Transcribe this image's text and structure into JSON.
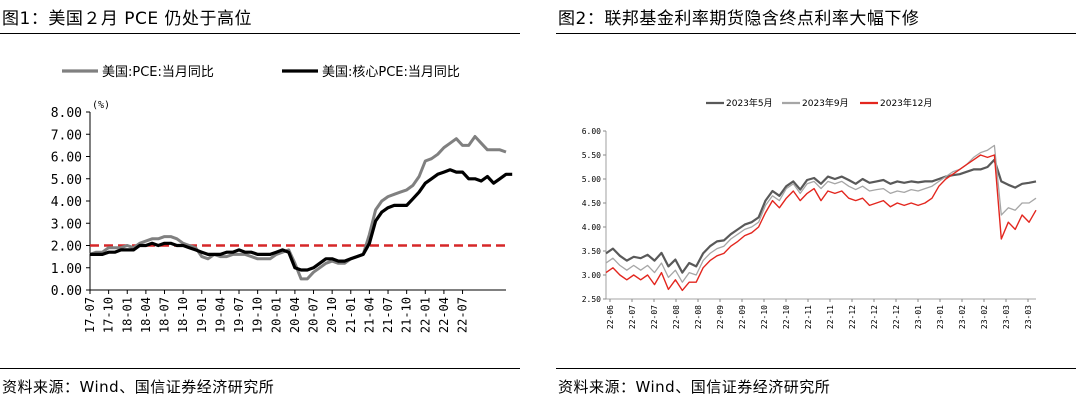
{
  "panels": [
    {
      "title": "图1：美国２月 PCE 仍处于高位",
      "source": "资料来源：Wind、国信证券经济研究所"
    },
    {
      "title": "图2：联邦基金利率期货隐含终点利率大幅下修",
      "source": "资料来源：Wind、国信证券经济研究所"
    }
  ],
  "chart_data": [
    {
      "type": "line",
      "title": "",
      "ylabel": "(%)",
      "ylim": [
        0,
        8
      ],
      "yticks": [
        "0.00",
        "1.00",
        "2.00",
        "3.00",
        "4.00",
        "5.00",
        "6.00",
        "7.00",
        "8.00"
      ],
      "xticks": [
        "17-07",
        "17-10",
        "18-01",
        "18-04",
        "18-07",
        "18-10",
        "19-01",
        "19-04",
        "19-07",
        "19-10",
        "20-01",
        "20-04",
        "20-07",
        "20-10",
        "21-01",
        "21-04",
        "21-07",
        "21-10",
        "22-01",
        "22-04",
        "22-07"
      ],
      "reference_line": {
        "value": 2.0,
        "color": "#d62728",
        "style": "dashed"
      },
      "legend_position": "top",
      "series": [
        {
          "name": "美国:PCE:当月同比",
          "color": "#808080",
          "values": [
            1.6,
            1.7,
            1.7,
            1.9,
            1.9,
            1.9,
            2.0,
            1.9,
            2.1,
            2.2,
            2.3,
            2.3,
            2.4,
            2.4,
            2.3,
            2.1,
            2.0,
            1.9,
            1.5,
            1.4,
            1.6,
            1.5,
            1.5,
            1.6,
            1.6,
            1.6,
            1.5,
            1.4,
            1.4,
            1.4,
            1.6,
            1.7,
            1.8,
            1.2,
            0.5,
            0.5,
            0.8,
            1.0,
            1.2,
            1.3,
            1.2,
            1.2,
            1.4,
            1.5,
            1.6,
            2.5,
            3.6,
            4.0,
            4.2,
            4.3,
            4.4,
            4.5,
            4.7,
            5.1,
            5.8,
            5.9,
            6.1,
            6.4,
            6.6,
            6.8,
            6.5,
            6.5,
            6.9,
            6.6,
            6.3,
            6.3,
            6.3,
            6.2
          ]
        },
        {
          "name": "美国:核心PCE:当月同比",
          "color": "#000000",
          "values": [
            1.6,
            1.6,
            1.6,
            1.7,
            1.7,
            1.8,
            1.8,
            1.8,
            2.0,
            2.0,
            2.1,
            2.0,
            2.1,
            2.1,
            2.0,
            2.0,
            1.9,
            1.8,
            1.7,
            1.6,
            1.6,
            1.6,
            1.7,
            1.7,
            1.8,
            1.7,
            1.7,
            1.6,
            1.6,
            1.6,
            1.7,
            1.8,
            1.7,
            1.0,
            0.9,
            0.9,
            1.0,
            1.2,
            1.4,
            1.4,
            1.3,
            1.3,
            1.4,
            1.5,
            1.6,
            2.1,
            3.1,
            3.5,
            3.7,
            3.8,
            3.8,
            3.8,
            4.1,
            4.4,
            4.8,
            5.0,
            5.2,
            5.3,
            5.4,
            5.3,
            5.3,
            5.0,
            5.0,
            4.9,
            5.1,
            4.8,
            5.0,
            5.2,
            5.2
          ]
        }
      ]
    },
    {
      "type": "line",
      "title": "",
      "ylim": [
        2.5,
        6.0
      ],
      "yticks": [
        "2.50",
        "3.00",
        "3.50",
        "4.00",
        "4.50",
        "5.00",
        "5.50",
        "6.00"
      ],
      "xticks": [
        "22-06",
        "22-07",
        "22-07",
        "22-08",
        "22-08",
        "22-09",
        "22-09",
        "22-10",
        "22-10",
        "22-11",
        "22-11",
        "22-12",
        "22-12",
        "22-12",
        "23-01",
        "23-01",
        "23-02",
        "23-02",
        "23-03",
        "23-03"
      ],
      "legend_position": "top",
      "series": [
        {
          "name": "2023年5月",
          "color": "#595959",
          "values": [
            3.45,
            3.55,
            3.4,
            3.3,
            3.38,
            3.35,
            3.42,
            3.3,
            3.46,
            3.18,
            3.32,
            3.05,
            3.25,
            3.18,
            3.45,
            3.6,
            3.7,
            3.72,
            3.85,
            3.95,
            4.05,
            4.1,
            4.2,
            4.55,
            4.75,
            4.65,
            4.85,
            4.95,
            4.78,
            4.98,
            5.02,
            4.9,
            5.05,
            5.0,
            5.05,
            4.98,
            4.9,
            5.0,
            4.92,
            4.95,
            4.98,
            4.9,
            4.95,
            4.92,
            4.95,
            4.93,
            4.95,
            4.95,
            5.0,
            5.05,
            5.08,
            5.1,
            5.15,
            5.2,
            5.2,
            5.25,
            5.4,
            4.95,
            4.88,
            4.82,
            4.9,
            4.92,
            4.95
          ]
        },
        {
          "name": "2023年9月",
          "color": "#a6a6a6",
          "values": [
            3.25,
            3.35,
            3.2,
            3.1,
            3.2,
            3.1,
            3.2,
            3.05,
            3.25,
            2.95,
            3.1,
            2.85,
            3.05,
            3.0,
            3.3,
            3.45,
            3.55,
            3.6,
            3.75,
            3.85,
            3.95,
            4.0,
            4.1,
            4.45,
            4.65,
            4.55,
            4.8,
            4.9,
            4.7,
            4.9,
            4.95,
            4.8,
            4.95,
            4.9,
            4.95,
            4.85,
            4.78,
            4.85,
            4.75,
            4.78,
            4.8,
            4.7,
            4.75,
            4.72,
            4.78,
            4.75,
            4.8,
            4.85,
            4.95,
            5.05,
            5.15,
            5.2,
            5.3,
            5.45,
            5.55,
            5.6,
            5.7,
            4.25,
            4.4,
            4.35,
            4.5,
            4.5,
            4.6
          ]
        },
        {
          "name": "2023年12月",
          "color": "#e3261e",
          "values": [
            3.05,
            3.15,
            3.0,
            2.9,
            3.0,
            2.9,
            3.0,
            2.8,
            3.05,
            2.7,
            2.9,
            2.68,
            2.85,
            2.85,
            3.15,
            3.3,
            3.4,
            3.45,
            3.6,
            3.7,
            3.82,
            3.88,
            4.0,
            4.3,
            4.55,
            4.4,
            4.6,
            4.75,
            4.55,
            4.7,
            4.8,
            4.55,
            4.75,
            4.7,
            4.75,
            4.6,
            4.55,
            4.6,
            4.45,
            4.5,
            4.55,
            4.42,
            4.5,
            4.45,
            4.5,
            4.45,
            4.5,
            4.6,
            4.85,
            5.0,
            5.1,
            5.2,
            5.3,
            5.4,
            5.5,
            5.45,
            5.5,
            3.75,
            4.1,
            3.95,
            4.25,
            4.1,
            4.35
          ]
        }
      ]
    }
  ]
}
